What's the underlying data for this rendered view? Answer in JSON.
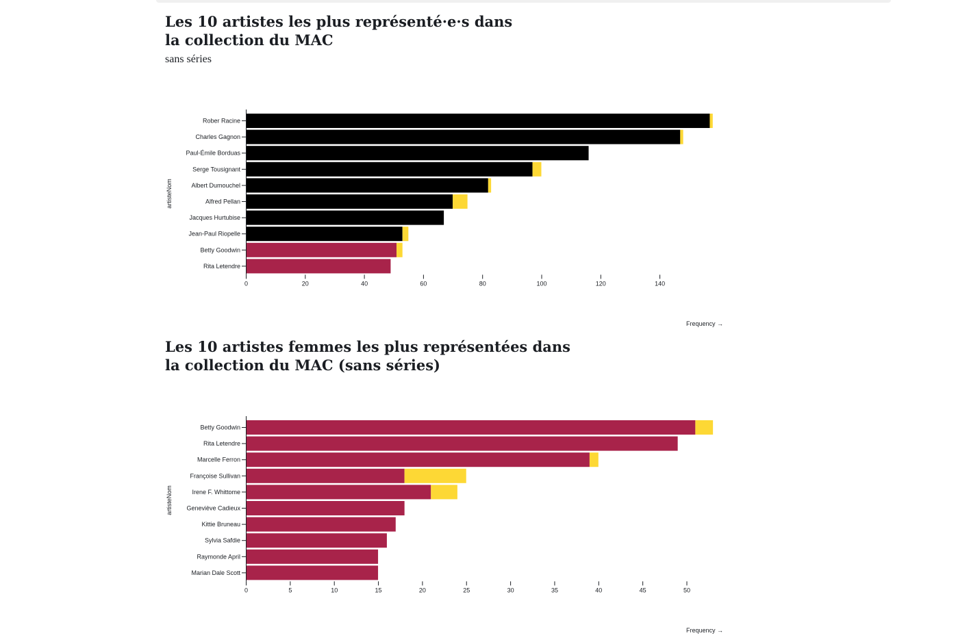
{
  "colors": {
    "black": "#000000",
    "crimson": "#a8234a",
    "yellow": "#fdd835",
    "axis": "#1b1e23"
  },
  "chart_data": [
    {
      "type": "bar",
      "orientation": "horizontal",
      "stacked": true,
      "title": "Les 10 artistes les plus représenté·e·s dans la collection du MAC",
      "subtitle": "sans séries",
      "ylabel": "artisteNom",
      "xlabel": "Frequency →",
      "xlim": [
        0,
        160
      ],
      "xticks": [
        0,
        20,
        40,
        60,
        80,
        100,
        120,
        140
      ],
      "grid": false,
      "categories": [
        "Rober Racine",
        "Charles Gagnon",
        "Paul-Émile Borduas",
        "Serge Tousignant",
        "Albert Dumouchel",
        "Alfred Pellan",
        "Jacques Hurtubise",
        "Jean-Paul Riopelle",
        "Betty Goodwin",
        "Rita Letendre"
      ],
      "base_colors": [
        "black",
        "black",
        "black",
        "black",
        "black",
        "black",
        "black",
        "black",
        "crimson",
        "crimson"
      ],
      "series": [
        {
          "color": "base",
          "values": [
            157,
            147,
            116,
            97,
            82,
            70,
            67,
            53,
            51,
            49
          ]
        },
        {
          "color": "yellow",
          "values": [
            1,
            1,
            0,
            3,
            1,
            5,
            0,
            2,
            2,
            0
          ]
        }
      ]
    },
    {
      "type": "bar",
      "orientation": "horizontal",
      "stacked": true,
      "title": "Les 10 artistes femmes les plus représentées dans la collection du MAC (sans séries)",
      "ylabel": "artisteNom",
      "xlabel": "Frequency →",
      "xlim": [
        0,
        55
      ],
      "xticks": [
        0,
        5,
        10,
        15,
        20,
        25,
        30,
        35,
        40,
        45,
        50
      ],
      "grid": false,
      "categories": [
        "Betty Goodwin",
        "Rita Letendre",
        "Marcelle Ferron",
        "Françoise Sullivan",
        "Irene F. Whittome",
        "Geneviève Cadieux",
        "Kittie Bruneau",
        "Sylvia Safdie",
        "Raymonde April",
        "Marian Dale Scott"
      ],
      "base_colors": [
        "crimson",
        "crimson",
        "crimson",
        "crimson",
        "crimson",
        "crimson",
        "crimson",
        "crimson",
        "crimson",
        "crimson"
      ],
      "series": [
        {
          "color": "base",
          "values": [
            51,
            49,
            39,
            18,
            21,
            18,
            17,
            16,
            15,
            15
          ]
        },
        {
          "color": "yellow",
          "values": [
            2,
            0,
            1,
            7,
            3,
            0,
            0,
            0,
            0,
            0
          ]
        }
      ]
    }
  ]
}
